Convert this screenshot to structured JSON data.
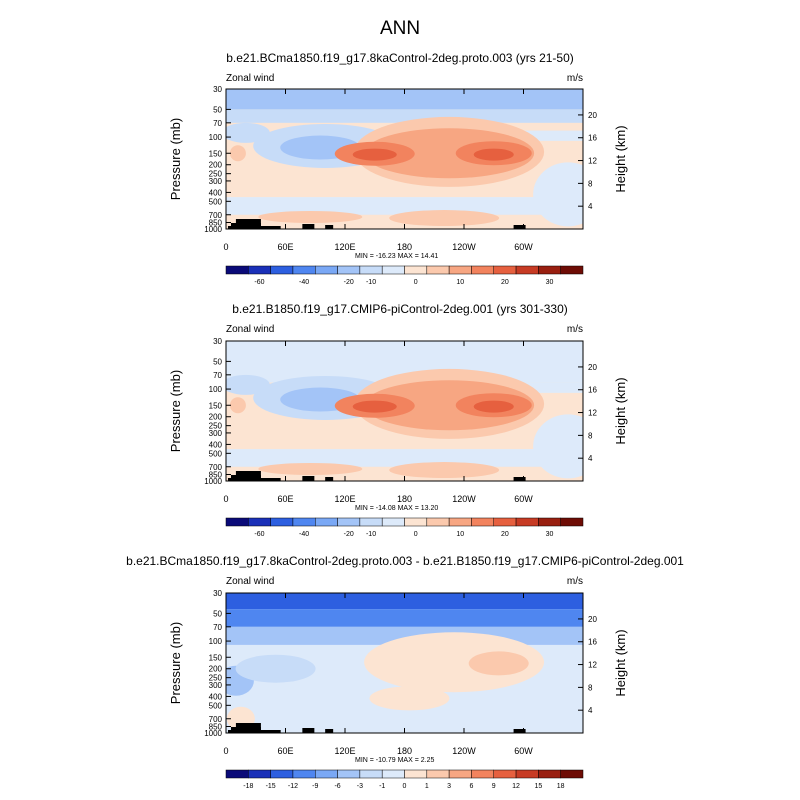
{
  "title": "ANN",
  "chart_data": [
    {
      "type": "heatmap",
      "title": "b.e21.BCma1850.f19_g17.8kaControl-2deg.proto.003 (yrs 21-50)",
      "variable": "Zonal wind",
      "units": "m/s",
      "ylabel": "Pressure (mb)",
      "ylabel_right": "Height (km)",
      "x_ticks": [
        "0",
        "60E",
        "120E",
        "180",
        "120W",
        "60W"
      ],
      "p_ticks": [
        "30",
        "50",
        "70",
        "100",
        "150",
        "200",
        "250",
        "300",
        "400",
        "500",
        "700",
        "850",
        "1000"
      ],
      "h_ticks": [
        "4",
        "8",
        "12",
        "16",
        "20"
      ],
      "stats": "MIN = -16.23   MAX =  14.41",
      "min": -16.23,
      "max": 14.41,
      "colorbar_labels": [
        "-60",
        "-40",
        "-20",
        "-10",
        "0",
        "10",
        "20",
        "30"
      ],
      "features": [
        {
          "name": "upper easterlies",
          "lon": [
            0,
            360
          ],
          "p": [
            30,
            70
          ],
          "value": -8
        },
        {
          "name": "westerly jet core",
          "lon": [
            140,
            210
          ],
          "p": [
            120,
            180
          ],
          "value": 14
        },
        {
          "name": "westerly jet core",
          "lon": [
            255,
            310
          ],
          "p": [
            120,
            180
          ],
          "value": 13
        },
        {
          "name": "equatorial easterlies",
          "lon": [
            60,
            140
          ],
          "p": [
            80,
            250
          ],
          "value": -6
        }
      ]
    },
    {
      "type": "heatmap",
      "title": "b.e21.B1850.f19_g17.CMIP6-piControl-2deg.001 (yrs 301-330)",
      "variable": "Zonal wind",
      "units": "m/s",
      "ylabel": "Pressure (mb)",
      "ylabel_right": "Height (km)",
      "x_ticks": [
        "0",
        "60E",
        "120E",
        "180",
        "120W",
        "60W"
      ],
      "p_ticks": [
        "30",
        "50",
        "70",
        "100",
        "150",
        "200",
        "250",
        "300",
        "400",
        "500",
        "700",
        "850",
        "1000"
      ],
      "h_ticks": [
        "4",
        "8",
        "12",
        "16",
        "20"
      ],
      "stats": "MIN = -14.08   MAX =  13.20",
      "min": -14.08,
      "max": 13.2,
      "colorbar_labels": [
        "-60",
        "-40",
        "-20",
        "-10",
        "0",
        "10",
        "20",
        "30"
      ],
      "features": [
        {
          "name": "upper easterlies",
          "lon": [
            0,
            360
          ],
          "p": [
            30,
            70
          ],
          "value": -3
        },
        {
          "name": "westerly jet core",
          "lon": [
            140,
            210
          ],
          "p": [
            120,
            180
          ],
          "value": 13
        },
        {
          "name": "westerly jet core",
          "lon": [
            255,
            310
          ],
          "p": [
            120,
            180
          ],
          "value": 12
        },
        {
          "name": "equatorial easterlies",
          "lon": [
            60,
            140
          ],
          "p": [
            80,
            250
          ],
          "value": -6
        }
      ]
    },
    {
      "type": "heatmap",
      "title": "b.e21.BCma1850.f19_g17.8kaControl-2deg.proto.003 - b.e21.B1850.f19_g17.CMIP6-piControl-2deg.001",
      "variable": "Zonal wind",
      "units": "m/s",
      "ylabel": "Pressure (mb)",
      "ylabel_right": "Height (km)",
      "x_ticks": [
        "0",
        "60E",
        "120E",
        "180",
        "120W",
        "60W"
      ],
      "p_ticks": [
        "30",
        "50",
        "70",
        "100",
        "150",
        "200",
        "250",
        "300",
        "400",
        "500",
        "700",
        "850",
        "1000"
      ],
      "h_ticks": [
        "4",
        "8",
        "12",
        "16",
        "20"
      ],
      "stats": "MIN = -10.79   MAX =  2.25",
      "min": -10.79,
      "max": 2.25,
      "colorbar_labels": [
        "-18",
        "-15",
        "-12",
        "-9",
        "-6",
        "-3",
        "-1",
        "0",
        "1",
        "3",
        "6",
        "9",
        "12",
        "15",
        "18"
      ],
      "features": [
        {
          "name": "upper easterly difference",
          "lon": [
            0,
            360
          ],
          "p": [
            30,
            50
          ],
          "value": -10
        },
        {
          "name": "westerly difference",
          "lon": [
            240,
            300
          ],
          "p": [
            150,
            250
          ],
          "value": 2
        }
      ]
    }
  ],
  "colors": {
    "scale": [
      "#0a0a78",
      "#1a30b8",
      "#2d5fe0",
      "#4f86f0",
      "#7aa8f5",
      "#a3c4f7",
      "#c7dcf8",
      "#ddeafa",
      "#fce4d2",
      "#fbc9ad",
      "#f7a682",
      "#f2835e",
      "#e6603f",
      "#c73b24",
      "#991f10",
      "#6e0c05"
    ]
  }
}
